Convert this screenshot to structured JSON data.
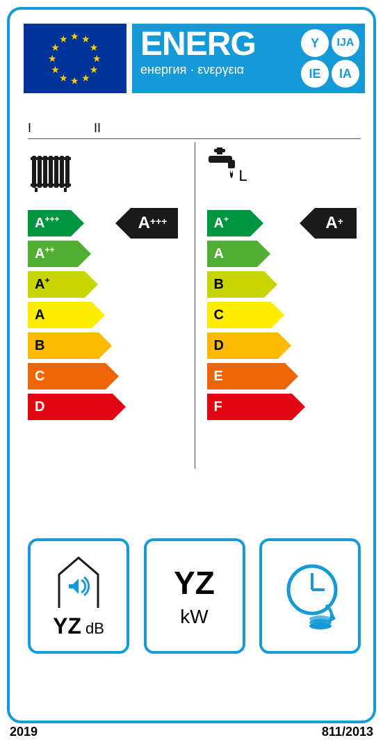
{
  "header": {
    "title": "ENERG",
    "subtitle": "енергия · ενεργεια",
    "bubbles": [
      "Y",
      "IJA",
      "IE",
      "IA"
    ]
  },
  "model": {
    "col1": "I",
    "col2": "II"
  },
  "heating": {
    "rating": "A+++",
    "scale": [
      {
        "label": "A",
        "sup": "+++",
        "color": "#009640",
        "width": 62,
        "dark": false
      },
      {
        "label": "A",
        "sup": "++",
        "color": "#52ae32",
        "width": 72,
        "dark": false
      },
      {
        "label": "A",
        "sup": "+",
        "color": "#c8d400",
        "width": 82,
        "dark": true
      },
      {
        "label": "A",
        "sup": "",
        "color": "#ffed00",
        "width": 92,
        "dark": true
      },
      {
        "label": "B",
        "sup": "",
        "color": "#fbba00",
        "width": 102,
        "dark": true
      },
      {
        "label": "C",
        "sup": "",
        "color": "#ec6608",
        "width": 112,
        "dark": false
      },
      {
        "label": "D",
        "sup": "",
        "color": "#e30613",
        "width": 122,
        "dark": false
      }
    ]
  },
  "water": {
    "load_profile": "L",
    "rating": "A+",
    "scale": [
      {
        "label": "A",
        "sup": "+",
        "color": "#009640",
        "width": 62,
        "dark": false
      },
      {
        "label": "A",
        "sup": "",
        "color": "#52ae32",
        "width": 72,
        "dark": false
      },
      {
        "label": "B",
        "sup": "",
        "color": "#c8d400",
        "width": 82,
        "dark": true
      },
      {
        "label": "C",
        "sup": "",
        "color": "#ffed00",
        "width": 92,
        "dark": true
      },
      {
        "label": "D",
        "sup": "",
        "color": "#fbba00",
        "width": 102,
        "dark": true
      },
      {
        "label": "E",
        "sup": "",
        "color": "#ec6608",
        "width": 112,
        "dark": false
      },
      {
        "label": "F",
        "sup": "",
        "color": "#e30613",
        "width": 122,
        "dark": false
      }
    ]
  },
  "sound": {
    "value": "YZ",
    "unit": "dB"
  },
  "power": {
    "value": "YZ",
    "unit": "kW"
  },
  "footer": {
    "year": "2019",
    "regulation": "811/2013"
  },
  "colors": {
    "brand": "#149bd7",
    "flag_bg": "#003399",
    "flag_star": "#ffcc00",
    "pointer": "#1a1a1a"
  }
}
